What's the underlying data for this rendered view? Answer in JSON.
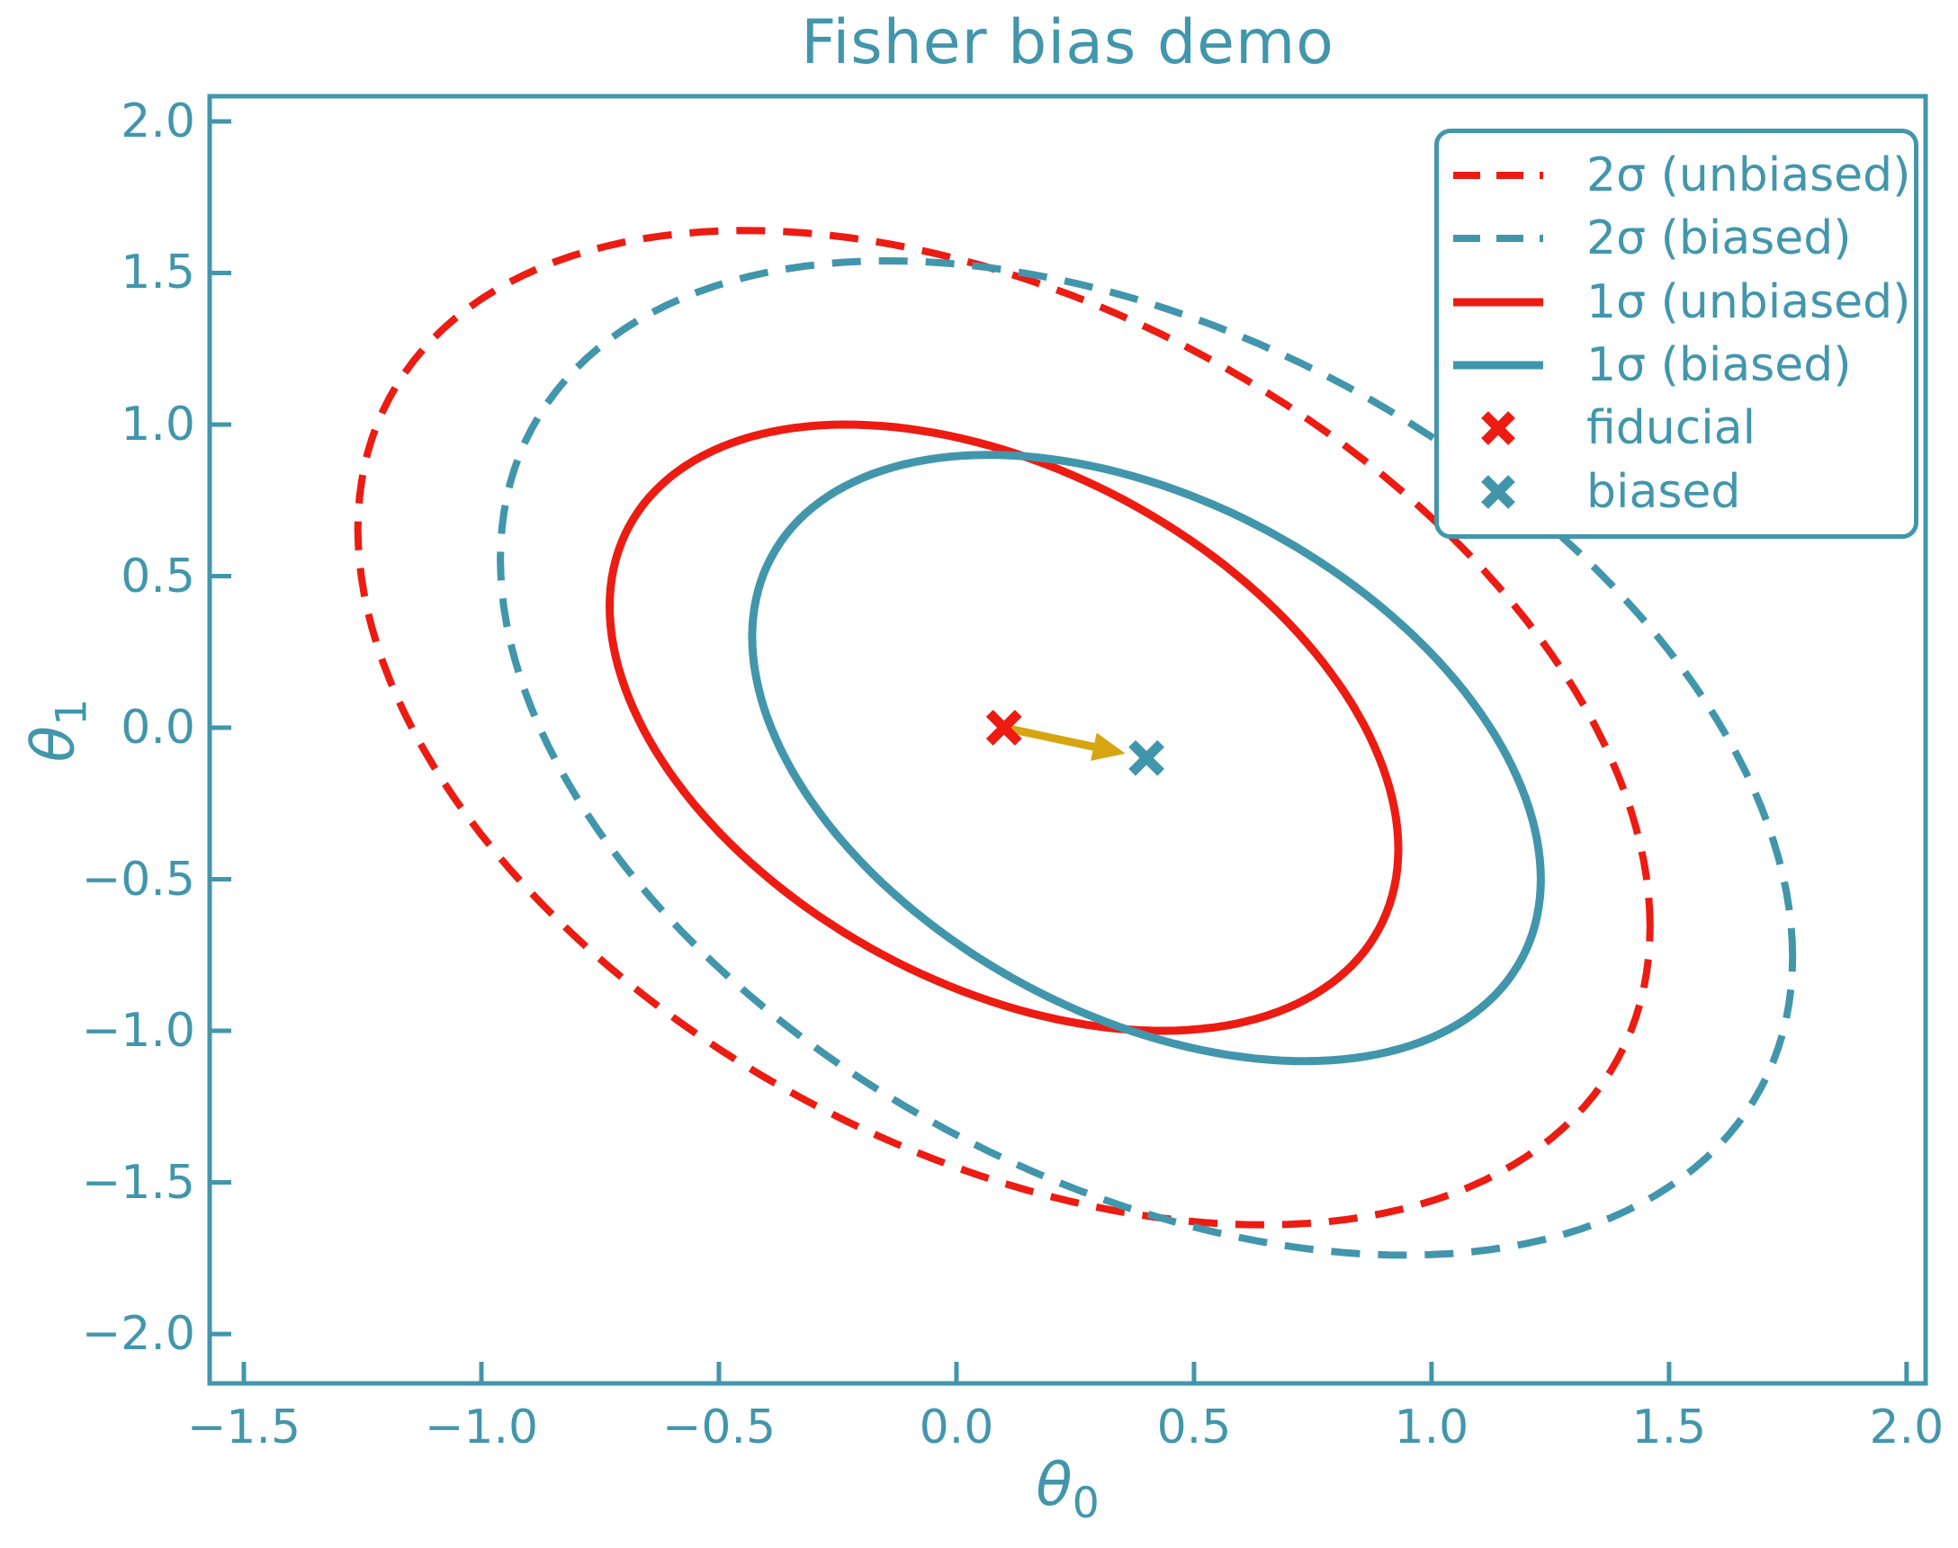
{
  "style": {
    "teal": "#4296ac",
    "red": "#ec1c13",
    "gold": "#d7a512",
    "background": "#ffffff"
  },
  "chart_data": {
    "type": "line",
    "title": "Fisher bias demo",
    "xlabel": {
      "base": "θ",
      "sub": "0"
    },
    "ylabel": {
      "base": "θ",
      "sub": "1"
    },
    "xlim": [
      -1.572,
      2.04
    ],
    "ylim": [
      -2.163,
      2.083
    ],
    "grid": false,
    "legend_position": "upper right",
    "xticks": {
      "values": [
        -1.5,
        -1.0,
        -0.5,
        0.0,
        0.5,
        1.0,
        1.5,
        2.0
      ],
      "labels": [
        "−1.5",
        "−1.0",
        "−0.5",
        "0.0",
        "0.5",
        "1.0",
        "1.5",
        "2.0"
      ]
    },
    "yticks": {
      "values": [
        2.0,
        1.5,
        1.0,
        0.5,
        0.0,
        -0.5,
        -1.0,
        -1.5,
        -2.0
      ],
      "labels": [
        "2.0",
        "1.5",
        "1.0",
        "0.5",
        "0.0",
        "−0.5",
        "−1.0",
        "−1.5",
        "−2.0"
      ]
    },
    "ellipses": [
      {
        "label": "2σ (unbiased)",
        "center": [
          0.1,
          0.0
        ],
        "rx": 1.36,
        "ry": 1.64,
        "rho": -0.4,
        "line": "dashed",
        "color_key": "red"
      },
      {
        "label": "2σ (biased)",
        "center": [
          0.4,
          -0.1
        ],
        "rx": 1.36,
        "ry": 1.64,
        "rho": -0.4,
        "line": "dashed",
        "color_key": "teal"
      },
      {
        "label": "1σ (unbiased)",
        "center": [
          0.1,
          0.0
        ],
        "rx": 0.83,
        "ry": 1.0,
        "rho": -0.4,
        "line": "solid",
        "color_key": "red"
      },
      {
        "label": "1σ (biased)",
        "center": [
          0.4,
          -0.1
        ],
        "rx": 0.83,
        "ry": 1.0,
        "rho": -0.4,
        "line": "solid",
        "color_key": "teal"
      }
    ],
    "points": [
      {
        "name": "fiducial",
        "x": 0.1,
        "y": 0.0,
        "marker": "x",
        "color_key": "red",
        "label": "fiducial"
      },
      {
        "name": "biased",
        "x": 0.4,
        "y": -0.1,
        "marker": "x",
        "color_key": "teal",
        "label": "biased"
      }
    ],
    "bias_arrow": {
      "from": [
        0.1,
        0.0
      ],
      "to": [
        0.4,
        -0.1
      ],
      "color_key": "gold"
    },
    "legend": {
      "items": [
        {
          "label": "2σ (unbiased)",
          "handle": "dashed",
          "color_key": "red"
        },
        {
          "label": "2σ (biased)",
          "handle": "dashed",
          "color_key": "teal"
        },
        {
          "label": "1σ (unbiased)",
          "handle": "solid",
          "color_key": "red"
        },
        {
          "label": "1σ (biased)",
          "handle": "solid",
          "color_key": "teal"
        },
        {
          "label": "fiducial",
          "handle": "x-marker",
          "color_key": "red"
        },
        {
          "label": "biased",
          "handle": "x-marker",
          "color_key": "teal"
        }
      ]
    }
  }
}
